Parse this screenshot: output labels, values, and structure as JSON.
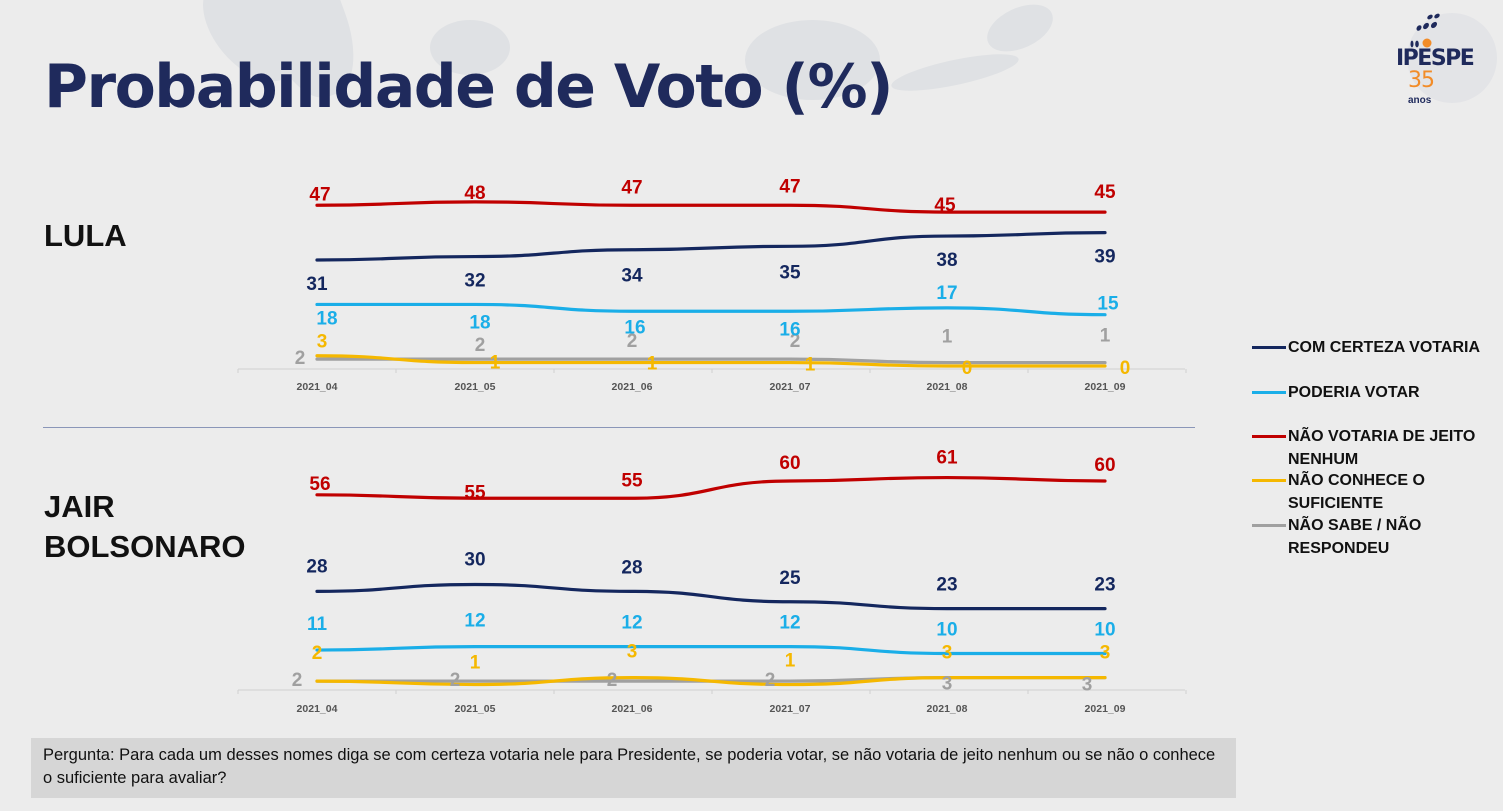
{
  "title": "Probabilidade de Voto (%)",
  "logo": {
    "brand": "IPESPE",
    "number": "35",
    "subtitle": "anos"
  },
  "legend": [
    {
      "label": "COM CERTEZA VOTARIA",
      "color": "#14275e"
    },
    {
      "label": "PODERIA VOTAR",
      "color": "#1aaee8"
    },
    {
      "label": "NÃO VOTARIA DE JEITO NENHUM",
      "color": "#c00000"
    },
    {
      "label": "NÃO CONHECE O SUFICIENTE",
      "color": "#f5b800"
    },
    {
      "label": "NÃO SABE / NÃO RESPONDEU",
      "color": "#a0a0a0"
    }
  ],
  "question": "Pergunta:  Para cada um desses nomes diga se com certeza votaria nele para Presidente, se poderia votar, se não votaria de jeito nenhum ou se não o conhece o suficiente para avaliar?",
  "chart_data": [
    {
      "type": "line",
      "title": "LULA",
      "categories": [
        "2021_04",
        "2021_05",
        "2021_06",
        "2021_07",
        "2021_08",
        "2021_09"
      ],
      "xlabel": "",
      "ylabel": "%",
      "ylim": [
        0,
        50
      ],
      "grid": false,
      "legend": "right",
      "series": [
        {
          "name": "COM CERTEZA VOTARIA",
          "color": "#14275e",
          "values": [
            31,
            32,
            34,
            35,
            38,
            39
          ]
        },
        {
          "name": "PODERIA VOTAR",
          "color": "#1aaee8",
          "values": [
            18,
            18,
            16,
            16,
            17,
            15
          ]
        },
        {
          "name": "NÃO VOTARIA DE JEITO NENHUM",
          "color": "#c00000",
          "values": [
            47,
            48,
            47,
            47,
            45,
            45
          ]
        },
        {
          "name": "NÃO CONHECE O SUFICIENTE",
          "color": "#f5b800",
          "values": [
            3,
            1,
            1,
            1,
            0,
            0
          ]
        },
        {
          "name": "NÃO SABE / NÃO RESPONDEU",
          "color": "#a0a0a0",
          "values": [
            2,
            2,
            2,
            2,
            1,
            1
          ]
        }
      ]
    },
    {
      "type": "line",
      "title": "JAIR BOLSONARO",
      "categories": [
        "2021_04",
        "2021_05",
        "2021_06",
        "2021_07",
        "2021_08",
        "2021_09"
      ],
      "xlabel": "",
      "ylabel": "%",
      "ylim": [
        0,
        65
      ],
      "grid": false,
      "legend": "right",
      "series": [
        {
          "name": "COM CERTEZA VOTARIA",
          "color": "#14275e",
          "values": [
            28,
            30,
            28,
            25,
            23,
            23
          ]
        },
        {
          "name": "PODERIA VOTAR",
          "color": "#1aaee8",
          "values": [
            11,
            12,
            12,
            12,
            10,
            10
          ]
        },
        {
          "name": "NÃO VOTARIA DE JEITO NENHUM",
          "color": "#c00000",
          "values": [
            56,
            55,
            55,
            60,
            61,
            60
          ]
        },
        {
          "name": "NÃO CONHECE O SUFICIENTE",
          "color": "#f5b800",
          "values": [
            2,
            1,
            3,
            1,
            3,
            3
          ]
        },
        {
          "name": "NÃO SABE / NÃO RESPONDEU",
          "color": "#a0a0a0",
          "values": [
            2,
            2,
            2,
            2,
            3,
            3
          ]
        }
      ]
    }
  ]
}
